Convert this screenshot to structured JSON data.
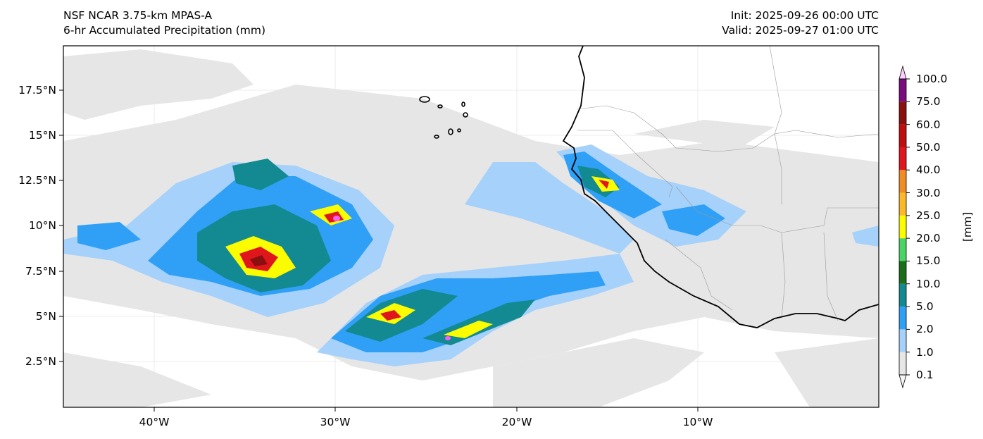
{
  "header": {
    "model": "NSF NCAR 3.75-km MPAS-A",
    "product": "6-hr Accumulated Precipitation (mm)",
    "init": "Init: 2025-09-26 00:00 UTC",
    "valid": "Valid: 2025-09-27 01:00 UTC"
  },
  "axes": {
    "lat_labels": [
      "17.5°N",
      "15°N",
      "12.5°N",
      "10°N",
      "7.5°N",
      "5°N",
      "2.5°N"
    ],
    "lon_labels": [
      "40°W",
      "30°W",
      "20°W",
      "10°W"
    ]
  },
  "colorbar": {
    "unit": "[mm]",
    "levels": [
      "0.1",
      "1.0",
      "2.0",
      "5.0",
      "10.0",
      "15.0",
      "20.0",
      "25.0",
      "30.0",
      "40.0",
      "50.0",
      "60.0",
      "75.0",
      "100.0"
    ],
    "colors": [
      "#e6e6e6",
      "#a5d1fb",
      "#2fa0f5",
      "#138a91",
      "#1b6e1b",
      "#49d463",
      "#fcfc00",
      "#fbb829",
      "#f18b23",
      "#e0161d",
      "#c00d0d",
      "#8b0f0f",
      "#7a0c7e",
      "#f95ef5"
    ]
  }
}
